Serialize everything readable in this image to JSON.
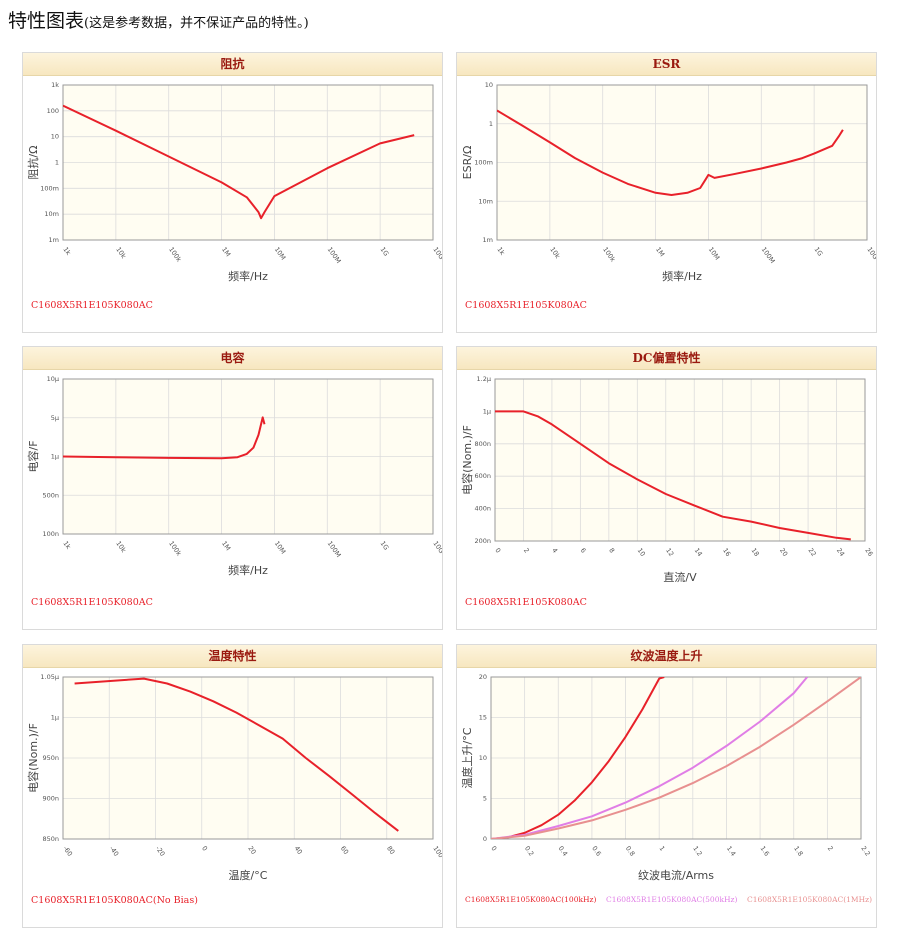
{
  "page": {
    "title": "特性图表",
    "subtitle": "(这是参考数据，并不保证产品的特性。)"
  },
  "chart_data": [
    {
      "id": "impedance",
      "type": "line",
      "title": "阻抗",
      "xlabel": "频率/Hz",
      "ylabel": "阻抗/Ω",
      "xscale": "log",
      "yscale": "log",
      "xlim": [
        1000,
        10000000000
      ],
      "ylim": [
        0.001,
        1000
      ],
      "x_ticks": [
        "1k",
        "10k",
        "100k",
        "1M",
        "10M",
        "100M",
        "1G",
        "10G"
      ],
      "y_ticks": [
        "1k",
        "100",
        "10",
        "1",
        "100m",
        "10m",
        "1m"
      ],
      "series": [
        {
          "name": "C1608X5R1E105K080AC",
          "color": "#e8212a",
          "points": [
            [
              1000,
              160
            ],
            [
              10000,
              17
            ],
            [
              100000,
              1.7
            ],
            [
              1000000,
              0.17
            ],
            [
              3000000,
              0.045
            ],
            [
              5000000,
              0.012
            ],
            [
              5600000,
              0.007
            ],
            [
              6500000,
              0.012
            ],
            [
              10000000,
              0.05
            ],
            [
              100000000,
              0.6
            ],
            [
              1000000000,
              5.5
            ],
            [
              4400000000,
              11.5
            ]
          ]
        }
      ],
      "legend": [
        {
          "text": "C1608X5R1E105K080AC",
          "color": "#e8212a"
        }
      ]
    },
    {
      "id": "esr",
      "type": "line",
      "title": "ESR",
      "xlabel": "频率/Hz",
      "ylabel": "ESR/Ω",
      "xscale": "log",
      "yscale": "log",
      "xlim": [
        1000,
        10000000000
      ],
      "ylim": [
        0.001,
        10
      ],
      "x_ticks": [
        "1k",
        "10k",
        "100k",
        "1M",
        "10M",
        "100M",
        "1G",
        "10G"
      ],
      "y_ticks": [
        "10",
        "1",
        "100m",
        "10m",
        "1m"
      ],
      "series": [
        {
          "name": "C1608X5R1E105K080AC",
          "color": "#e8212a",
          "points": [
            [
              1000,
              2.2
            ],
            [
              3000,
              0.9
            ],
            [
              10000,
              0.33
            ],
            [
              30000,
              0.13
            ],
            [
              100000,
              0.055
            ],
            [
              300000,
              0.028
            ],
            [
              1000000,
              0.0165
            ],
            [
              2000000,
              0.0145
            ],
            [
              4000000,
              0.0165
            ],
            [
              7000000,
              0.022
            ],
            [
              9000000,
              0.038
            ],
            [
              10000000,
              0.048
            ],
            [
              13000000,
              0.04
            ],
            [
              30000000,
              0.05
            ],
            [
              100000000,
              0.07
            ],
            [
              300000000,
              0.1
            ],
            [
              600000000,
              0.13
            ],
            [
              1000000000,
              0.17
            ],
            [
              2200000000,
              0.27
            ],
            [
              3000000000,
              0.5
            ],
            [
              3500000000,
              0.7
            ]
          ]
        }
      ],
      "legend": [
        {
          "text": "C1608X5R1E105K080AC",
          "color": "#e8212a"
        }
      ]
    },
    {
      "id": "capacitance",
      "type": "line",
      "title": "电容",
      "xlabel": "频率/Hz",
      "ylabel": "电容/F",
      "xscale": "log",
      "yscale": "log",
      "xlim": [
        1000,
        10000000000
      ],
      "ylim": [
        1e-07,
        1e-05
      ],
      "x_ticks": [
        "1k",
        "10k",
        "100k",
        "1M",
        "10M",
        "100M",
        "1G",
        "10G"
      ],
      "y_ticks": [
        "10μ",
        "5μ",
        "1μ",
        "500n",
        "100n"
      ],
      "series": [
        {
          "name": "C1608X5R1E105K080AC",
          "color": "#e8212a",
          "points": [
            [
              1000,
              1e-06
            ],
            [
              10000,
              9.8e-07
            ],
            [
              100000,
              9.6e-07
            ],
            [
              1000000,
              9.5e-07
            ],
            [
              2000000,
              9.8e-07
            ],
            [
              3000000,
              1.08e-06
            ],
            [
              4000000,
              1.3e-06
            ],
            [
              5000000,
              1.9e-06
            ],
            [
              6000000,
              3.2e-06
            ],
            [
              6500000,
              2.6e-06
            ]
          ]
        }
      ],
      "legend": [
        {
          "text": "C1608X5R1E105K080AC",
          "color": "#e8212a"
        }
      ]
    },
    {
      "id": "dcbias",
      "type": "line",
      "title": "DC偏置特性",
      "xlabel": "直流/V",
      "ylabel": "电容(Nom.)/F",
      "xscale": "linear",
      "yscale": "linear",
      "xlim": [
        0,
        26
      ],
      "ylim": [
        2e-07,
        1.2e-06
      ],
      "x_ticks": [
        "0",
        "2",
        "4",
        "6",
        "8",
        "10",
        "12",
        "14",
        "16",
        "18",
        "20",
        "22",
        "24",
        "26"
      ],
      "y_ticks": [
        "1.2μ",
        "1μ",
        "800n",
        "600n",
        "400n",
        "200n"
      ],
      "series": [
        {
          "name": "C1608X5R1E105K080AC",
          "color": "#e8212a",
          "points": [
            [
              0,
              1e-06
            ],
            [
              1,
              1e-06
            ],
            [
              2,
              1e-06
            ],
            [
              3,
              9.7e-07
            ],
            [
              4,
              9.2e-07
            ],
            [
              6,
              8e-07
            ],
            [
              8,
              6.8e-07
            ],
            [
              10,
              5.8e-07
            ],
            [
              12,
              4.9e-07
            ],
            [
              14,
              4.2e-07
            ],
            [
              16,
              3.5e-07
            ],
            [
              18,
              3.2e-07
            ],
            [
              20,
              2.8e-07
            ],
            [
              22,
              2.5e-07
            ],
            [
              24,
              2.2e-07
            ],
            [
              25,
              2.1e-07
            ]
          ]
        }
      ],
      "legend": [
        {
          "text": "C1608X5R1E105K080AC",
          "color": "#e8212a"
        }
      ]
    },
    {
      "id": "temperature",
      "type": "line",
      "title": "温度特性",
      "xlabel": "温度/°C",
      "ylabel": "电容(Nom.)/F",
      "xscale": "linear",
      "yscale": "linear",
      "xlim": [
        -60,
        100
      ],
      "ylim": [
        8.5e-07,
        1.05e-06
      ],
      "x_ticks": [
        "-60",
        "-40",
        "-20",
        "0",
        "20",
        "40",
        "60",
        "80",
        "100"
      ],
      "y_ticks": [
        "1.05μ",
        "1μ",
        "950n",
        "900n",
        "850n"
      ],
      "series": [
        {
          "name": "C1608X5R1E105K080AC(No Bias)",
          "color": "#e8212a",
          "points": [
            [
              -55,
              1.042e-06
            ],
            [
              -45,
              1.044e-06
            ],
            [
              -35,
              1.046e-06
            ],
            [
              -25,
              1.048e-06
            ],
            [
              -15,
              1.042e-06
            ],
            [
              -5,
              1.032e-06
            ],
            [
              5,
              1.02e-06
            ],
            [
              15,
              1.006e-06
            ],
            [
              25,
              9.9e-07
            ],
            [
              35,
              9.74e-07
            ],
            [
              45,
              9.5e-07
            ],
            [
              55,
              9.28e-07
            ],
            [
              65,
              9.05e-07
            ],
            [
              75,
              8.82e-07
            ],
            [
              85,
              8.6e-07
            ]
          ]
        }
      ],
      "legend": [
        {
          "text": "C1608X5R1E105K080AC(No Bias)",
          "color": "#e8212a"
        }
      ]
    },
    {
      "id": "ripple",
      "type": "line",
      "title": "纹波温度上升",
      "xlabel": "纹波电流/Arms",
      "ylabel": "温度上升/°C",
      "xscale": "linear",
      "yscale": "linear",
      "xlim": [
        0,
        2.2
      ],
      "ylim": [
        0,
        20
      ],
      "x_ticks": [
        "0",
        "0.2",
        "0.4",
        "0.6",
        "0.8",
        "1",
        "1.2",
        "1.4",
        "1.6",
        "1.8",
        "2",
        "2.2"
      ],
      "y_ticks": [
        "20",
        "15",
        "10",
        "5",
        "0"
      ],
      "series": [
        {
          "name": "C1608X5R1E105K080AC(100kHz)",
          "color": "#e8212a",
          "points": [
            [
              0,
              0
            ],
            [
              0.1,
              0.2
            ],
            [
              0.2,
              0.75
            ],
            [
              0.3,
              1.7
            ],
            [
              0.4,
              3.0
            ],
            [
              0.5,
              4.8
            ],
            [
              0.6,
              7.0
            ],
            [
              0.7,
              9.6
            ],
            [
              0.8,
              12.6
            ],
            [
              0.9,
              16.0
            ],
            [
              1.0,
              19.8
            ],
            [
              1.03,
              20
            ]
          ]
        },
        {
          "name": "C1608X5R1E105K080AC(500kHz)",
          "color": "#e07ee6",
          "points": [
            [
              0,
              0
            ],
            [
              0.2,
              0.5
            ],
            [
              0.4,
              1.6
            ],
            [
              0.6,
              2.8
            ],
            [
              0.8,
              4.5
            ],
            [
              1.0,
              6.5
            ],
            [
              1.2,
              8.8
            ],
            [
              1.4,
              11.5
            ],
            [
              1.6,
              14.5
            ],
            [
              1.8,
              18.0
            ],
            [
              1.88,
              20
            ]
          ]
        },
        {
          "name": "C1608X5R1E105K080AC(1MHz)",
          "color": "#e89090",
          "points": [
            [
              0,
              0
            ],
            [
              0.2,
              0.4
            ],
            [
              0.4,
              1.3
            ],
            [
              0.6,
              2.3
            ],
            [
              0.8,
              3.6
            ],
            [
              1.0,
              5.1
            ],
            [
              1.2,
              6.9
            ],
            [
              1.4,
              9.0
            ],
            [
              1.6,
              11.4
            ],
            [
              1.8,
              14.1
            ],
            [
              2.0,
              17.0
            ],
            [
              2.2,
              20
            ]
          ]
        }
      ],
      "legend": [
        {
          "text": "C1608X5R1E105K080AC(100kHz)",
          "color": "#e8212a"
        },
        {
          "text": "C1608X5R1E105K080AC(500kHz)",
          "color": "#e07ee6"
        },
        {
          "text": "C1608X5R1E105K080AC(1MHz)",
          "color": "#e89090"
        }
      ]
    }
  ]
}
